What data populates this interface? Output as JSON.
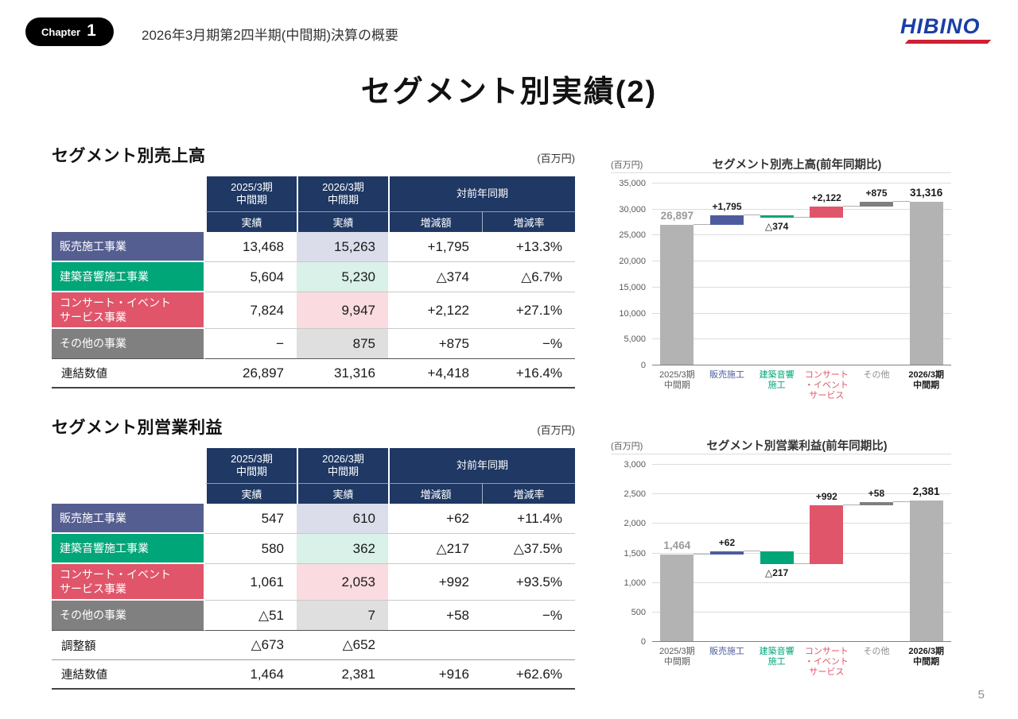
{
  "colors": {
    "navy_header": "#1F3864",
    "segment_blue": "#555E90",
    "segment_green": "#00A578",
    "segment_red": "#E0556A",
    "segment_gray": "#808080",
    "tint_blue": "#DBDDEB",
    "tint_green": "#D9F1E8",
    "tint_pink": "#FADBE0",
    "tint_gray": "#DFDFDF",
    "chart_total_gray": "#B3B3B3",
    "chart_other_gray": "#7F7F7F",
    "logo_blue": "#1B3EA6",
    "logo_red": "#CE2033"
  },
  "header": {
    "chapter_label": "Chapter",
    "chapter_number": "1",
    "subtitle": "2026年3月期第2四半期(中間期)決算の概要",
    "logo_text": "HIBINO"
  },
  "page_title": "セグメント別実績(2)",
  "page_number": "5",
  "sales_table": {
    "title": "セグメント別売上高",
    "unit": "(百万円)",
    "headers": {
      "fy2025": "2025/3期\n中間期",
      "fy2026": "2026/3期\n中間期",
      "yoy": "対前年同期",
      "actual_2025": "実績",
      "actual_2026": "実績",
      "change": "増減額",
      "rate": "増減率"
    },
    "rows": [
      {
        "label": "販売施工事業",
        "fy2025": "13,468",
        "fy2026": "15,263",
        "change": "+1,795",
        "rate": "+13.3%"
      },
      {
        "label": "建築音響施工事業",
        "fy2025": "5,604",
        "fy2026": "5,230",
        "change": "△374",
        "rate": "△6.7%"
      },
      {
        "label": "コンサート・イベント\nサービス事業",
        "fy2025": "7,824",
        "fy2026": "9,947",
        "change": "+2,122",
        "rate": "+27.1%"
      },
      {
        "label": "その他の事業",
        "fy2025": "−",
        "fy2026": "875",
        "change": "+875",
        "rate": "−%"
      }
    ],
    "total_row": {
      "label": "連結数値",
      "fy2025": "26,897",
      "fy2026": "31,316",
      "change": "+4,418",
      "rate": "+16.4%"
    }
  },
  "profit_table": {
    "title": "セグメント別営業利益",
    "unit": "(百万円)",
    "headers": {
      "fy2025": "2025/3期\n中間期",
      "fy2026": "2026/3期\n中間期",
      "yoy": "対前年同期",
      "actual_2025": "実績",
      "actual_2026": "実績",
      "change": "増減額",
      "rate": "増減率"
    },
    "rows": [
      {
        "label": "販売施工事業",
        "fy2025": "547",
        "fy2026": "610",
        "change": "+62",
        "rate": "+11.4%"
      },
      {
        "label": "建築音響施工事業",
        "fy2025": "580",
        "fy2026": "362",
        "change": "△217",
        "rate": "△37.5%"
      },
      {
        "label": "コンサート・イベント\nサービス事業",
        "fy2025": "1,061",
        "fy2026": "2,053",
        "change": "+992",
        "rate": "+93.5%"
      },
      {
        "label": "その他の事業",
        "fy2025": "△51",
        "fy2026": "7",
        "change": "+58",
        "rate": "−%"
      }
    ],
    "adjustment_row": {
      "label": "調整額",
      "fy2025": "△673",
      "fy2026": "△652",
      "change": "",
      "rate": ""
    },
    "total_row": {
      "label": "連結数値",
      "fy2025": "1,464",
      "fy2026": "2,381",
      "change": "+916",
      "rate": "+62.6%"
    }
  },
  "chart_data": [
    {
      "type": "waterfall",
      "title": "セグメント別売上高(前年同期比)",
      "unit": "(百万円)",
      "ylim": [
        0,
        35000
      ],
      "ytick": 5000,
      "grid": true,
      "legend": "none",
      "bars": [
        {
          "label": "2025/3期\n中間期",
          "kind": "total",
          "value": 26897,
          "display": "26,897",
          "color": "#B3B3B3",
          "value_label_color": "#9A9A9A",
          "xlabel_color": "#595959",
          "bold": true
        },
        {
          "label": "販売施工",
          "kind": "delta",
          "value": 1795,
          "display": "+1,795",
          "color": "#4E5C9E",
          "xlabel_color": "#4E5C9E"
        },
        {
          "label": "建築音響\n施工",
          "kind": "delta",
          "value": -374,
          "display": "△374",
          "color": "#00A578",
          "xlabel_color": "#00A578"
        },
        {
          "label": "コンサート\n・イベント\nサービス",
          "kind": "delta",
          "value": 2122,
          "display": "+2,122",
          "color": "#E0556A",
          "xlabel_color": "#E0556A"
        },
        {
          "label": "その他",
          "kind": "delta",
          "value": 875,
          "display": "+875",
          "color": "#7F7F7F",
          "xlabel_color": "#8C8C8C"
        },
        {
          "label": "2026/3期\n中間期",
          "kind": "total",
          "value": 31316,
          "display": "31,316",
          "color": "#B3B3B3",
          "value_label_color": "#1A1A1A",
          "xlabel_color": "#1A1A1A",
          "bold": true,
          "xbold": true
        }
      ]
    },
    {
      "type": "waterfall",
      "title": "セグメント別営業利益(前年同期比)",
      "unit": "(百万円)",
      "ylim": [
        0,
        3000
      ],
      "ytick": 500,
      "grid": true,
      "legend": "none",
      "bars": [
        {
          "label": "2025/3期\n中間期",
          "kind": "total",
          "value": 1464,
          "display": "1,464",
          "color": "#B3B3B3",
          "value_label_color": "#9A9A9A",
          "xlabel_color": "#595959",
          "bold": true
        },
        {
          "label": "販売施工",
          "kind": "delta",
          "value": 62,
          "display": "+62",
          "color": "#4E5C9E",
          "xlabel_color": "#4E5C9E"
        },
        {
          "label": "建築音響\n施工",
          "kind": "delta",
          "value": -217,
          "display": "△217",
          "color": "#00A578",
          "xlabel_color": "#00A578"
        },
        {
          "label": "コンサート\n・イベント\nサービス",
          "kind": "delta",
          "value": 992,
          "display": "+992",
          "color": "#E0556A",
          "xlabel_color": "#E0556A"
        },
        {
          "label": "その他",
          "kind": "delta",
          "value": 58,
          "display": "+58",
          "color": "#7F7F7F",
          "xlabel_color": "#8C8C8C"
        },
        {
          "label": "2026/3期\n中間期",
          "kind": "total",
          "value": 2381,
          "display": "2,381",
          "color": "#B3B3B3",
          "value_label_color": "#1A1A1A",
          "xlabel_color": "#1A1A1A",
          "bold": true,
          "xbold": true
        }
      ]
    }
  ]
}
